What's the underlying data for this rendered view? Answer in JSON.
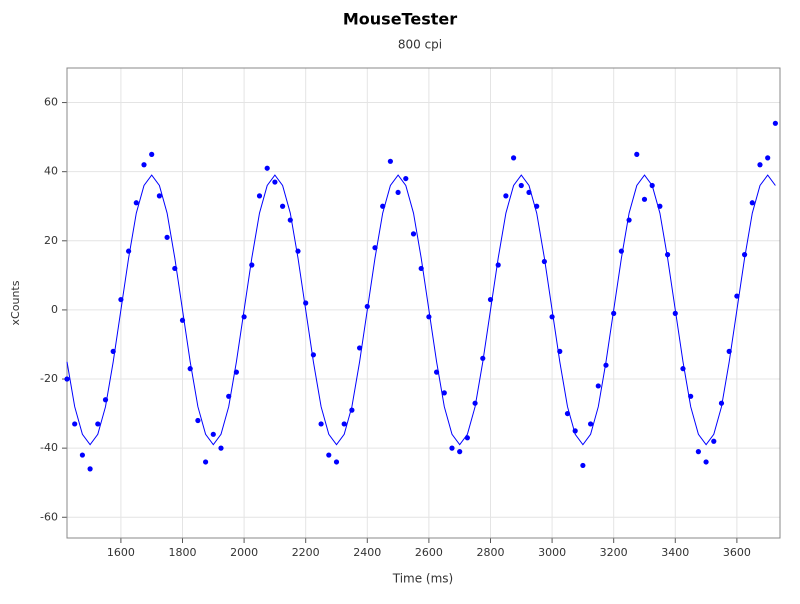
{
  "chart_data": {
    "type": "scatter",
    "title": "MouseTester",
    "subtitle": "800 cpi",
    "x_label": "Time (ms)",
    "y_label": "xCounts",
    "x": [
      1425,
      1450,
      1475,
      1500,
      1525,
      1550,
      1575,
      1600,
      1625,
      1650,
      1675,
      1700,
      1725,
      1750,
      1775,
      1800,
      1825,
      1850,
      1875,
      1900,
      1925,
      1950,
      1975,
      2000,
      2025,
      2050,
      2075,
      2100,
      2125,
      2150,
      2175,
      2200,
      2225,
      2250,
      2275,
      2300,
      2325,
      2350,
      2375,
      2400,
      2425,
      2450,
      2475,
      2500,
      2525,
      2550,
      2575,
      2600,
      2625,
      2650,
      2675,
      2700,
      2725,
      2750,
      2775,
      2800,
      2825,
      2850,
      2875,
      2900,
      2925,
      2950,
      2975,
      3000,
      3025,
      3050,
      3075,
      3100,
      3125,
      3150,
      3175,
      3200,
      3225,
      3250,
      3275,
      3300,
      3325,
      3350,
      3375,
      3400,
      3425,
      3450,
      3475,
      3500,
      3525,
      3550,
      3575,
      3600,
      3625,
      3650,
      3675,
      3700,
      3725
    ],
    "series": [
      {
        "style": "markers",
        "color": "#0000ff",
        "values": [
          -20,
          -33,
          -42,
          -46,
          -33,
          -26,
          -12,
          3,
          17,
          31,
          42,
          45,
          33,
          21,
          12,
          -3,
          -17,
          -32,
          -44,
          -36,
          -40,
          -25,
          -18,
          -2,
          13,
          33,
          41,
          37,
          30,
          26,
          17,
          2,
          -13,
          -33,
          -42,
          -44,
          -33,
          -29,
          -11,
          1,
          18,
          30,
          43,
          34,
          38,
          22,
          12,
          -2,
          -18,
          -24,
          -40,
          -41,
          -37,
          -27,
          -14,
          3,
          13,
          33,
          44,
          36,
          34,
          30,
          14,
          -2,
          -12,
          -30,
          -35,
          -45,
          -33,
          -22,
          -16,
          -1,
          17,
          26,
          45,
          32,
          36,
          30,
          16,
          -1,
          -17,
          -25,
          -41,
          -44,
          -38,
          -27,
          -12,
          4,
          16,
          31,
          42,
          44,
          54
        ]
      },
      {
        "style": "line",
        "color": "#0000ff",
        "values": [
          -15,
          -28,
          -36,
          -39,
          -36,
          -28,
          -15,
          0,
          15,
          28,
          36,
          39,
          36,
          28,
          15,
          0,
          -15,
          -28,
          -36,
          -39,
          -36,
          -28,
          -15,
          0,
          15,
          28,
          36,
          39,
          36,
          28,
          15,
          0,
          -15,
          -28,
          -36,
          -39,
          -36,
          -28,
          -15,
          0,
          15,
          28,
          36,
          39,
          36,
          28,
          15,
          0,
          -15,
          -28,
          -36,
          -39,
          -36,
          -28,
          -15,
          0,
          15,
          28,
          36,
          39,
          36,
          28,
          15,
          0,
          -15,
          -28,
          -36,
          -39,
          -36,
          -28,
          -15,
          0,
          15,
          28,
          36,
          39,
          36,
          28,
          15,
          0,
          -15,
          -28,
          -36,
          -39,
          -36,
          -28,
          -15,
          0,
          15,
          28,
          36,
          39,
          36
        ]
      }
    ],
    "xlim": [
      1425,
      3740
    ],
    "ylim": [
      -66,
      70
    ],
    "xticks": [
      1600,
      1800,
      2000,
      2200,
      2400,
      2600,
      2800,
      3000,
      3200,
      3400,
      3600
    ],
    "yticks": [
      -60,
      -40,
      -20,
      0,
      20,
      40,
      60
    ],
    "grid": true
  }
}
